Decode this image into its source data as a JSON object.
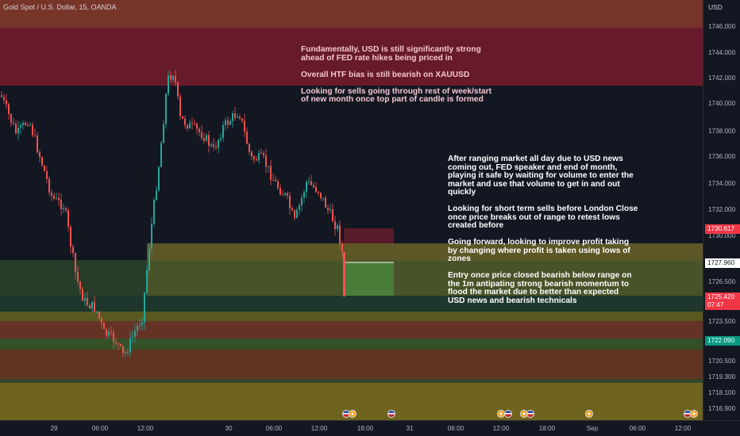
{
  "symbol_title": "Gold Spot / U.S. Dollar, 15, OANDA",
  "notes": {
    "top": "Fundamentally, USD is still significantly strong\nahead of FED rate hikes being priced in\n\nOverall HTF bias is still bearish on XAUUSD\n\nLooking for sells going through rest of week/start\nof new month once top part of candle is formed",
    "right": "After ranging market all day due to USD news\ncoming out, FED speaker and end of month,\nplaying it safe by waiting for volume to enter the\nmarket and use that volume to get in and out\nquickly\n\nLooking for short term sells before London Close\nonce price breaks out of range to retest lows\ncreated before\n\nGoing forward, looking to improve profit taking\nby changing where profit is taken using lows of\nzones\n\nEntry once price closed bearish below range on\nthe 1m antipating strong bearish momentum to\nflood the market due to better than expected\nUSD news and bearish technicals"
  },
  "price_axis": {
    "unit": "USD",
    "ticks": [
      "1746.000",
      "1744.000",
      "1742.000",
      "1740.000",
      "1738.000",
      "1736.000",
      "1734.000",
      "1732.000",
      "1730.000",
      "1726.500",
      "1723.500",
      "1720.500",
      "1719.300",
      "1718.100",
      "1716.900"
    ],
    "badges": [
      {
        "text": "1730.617",
        "bg": "#f23645"
      },
      {
        "text": "1727.960",
        "bg": "#ffffff",
        "fg": "#131722"
      },
      {
        "text": "1725.420\n07:47",
        "bg": "#f23645"
      },
      {
        "text": "1722.090",
        "bg": "#089981"
      }
    ]
  },
  "time_axis": {
    "ticks": [
      "29",
      "06:00",
      "12:00",
      "30",
      "06:00",
      "12:00",
      "18:00",
      "31",
      "06:00",
      "12:00",
      "18:00",
      "Sep",
      "06:00",
      "12:00"
    ]
  },
  "colors": {
    "background": "#131722",
    "bull": "#26a69a",
    "bear": "#ef5350",
    "zone_red": "#f23645",
    "zone_olive": "#9a8a2a",
    "zone_green": "#4c8a3c"
  },
  "event_icons": [
    "us-flag",
    "us-flag",
    "us-flag",
    "us-flag",
    "us-flag",
    "us-flag",
    "us-flag",
    "us-flag",
    "us-flag",
    "us-flag"
  ]
}
